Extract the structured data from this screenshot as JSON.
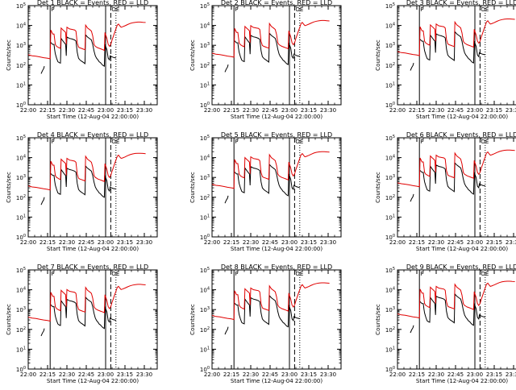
{
  "figure": {
    "colors": {
      "events": "#000000",
      "lld": "#e00000",
      "background": "#ffffff",
      "axes": "#000000"
    },
    "panels": [
      {
        "title": "Det 1  BLACK = Events, RED = LLD",
        "xlabel": "Start Time (12-Aug-04 22:00:00)",
        "ylabel": "Counts/sec",
        "marker_labels": [
          "P",
          "OE"
        ]
      },
      {
        "title": "Det 2  BLACK = Events, RED = LLD",
        "xlabel": "Start Time (12-Aug-04 22:00:00)",
        "ylabel": "Counts/sec",
        "marker_labels": [
          "P",
          "OE"
        ]
      },
      {
        "title": "Det 3  BLACK = Events, RED = LLD",
        "xlabel": "Start Time (12-Aug-04 22:00:00)",
        "ylabel": "Counts/sec",
        "marker_labels": [
          "P",
          "OE"
        ]
      },
      {
        "title": "Det 4  BLACK = Events, RED = LLD",
        "xlabel": "Start Time (12-Aug-04 22:00:00)",
        "ylabel": "Counts/sec",
        "marker_labels": [
          "P",
          "OE"
        ]
      },
      {
        "title": "Det 5  BLACK = Events, RED = LLD",
        "xlabel": "Start Time (12-Aug-04 22:00:00)",
        "ylabel": "Counts/sec",
        "marker_labels": [
          "P",
          "OE"
        ]
      },
      {
        "title": "Det 6  BLACK = Events, RED = LLD",
        "xlabel": "Start Time (12-Aug-04 22:00:00)",
        "ylabel": "Counts/sec",
        "marker_labels": [
          "P",
          "OE"
        ]
      },
      {
        "title": "Det 7  BLACK = Events, RED = LLD",
        "xlabel": "Start Time (12-Aug-04 22:00:00)",
        "ylabel": "Counts/sec",
        "marker_labels": [
          "P",
          "OE"
        ]
      },
      {
        "title": "Det 8  BLACK = Events, RED = LLD",
        "xlabel": "Start Time (12-Aug-04 22:00:00)",
        "ylabel": "Counts/sec",
        "marker_labels": [
          "P",
          "OE"
        ]
      },
      {
        "title": "Det 9  BLACK = Events, RED = LLD",
        "xlabel": "Start Time (12-Aug-04 22:00:00)",
        "ylabel": "Counts/sec",
        "marker_labels": [
          "P",
          "OE"
        ]
      }
    ]
  },
  "chart_data": {
    "type": "line",
    "layout": "3x3 grid",
    "x_tick_labels": [
      "22:00",
      "22:15",
      "22:30",
      "22:45",
      "23:00",
      "23:15",
      "23:30"
    ],
    "x_ticks_minutes": [
      0,
      15,
      30,
      45,
      60,
      75,
      90
    ],
    "xlim_minutes": [
      0,
      100
    ],
    "y_scale": "log",
    "ylim": [
      1,
      100000
    ],
    "y_ticks": [
      1,
      10,
      100,
      1000,
      10000,
      100000
    ],
    "y_tick_labels": [
      "10^0",
      "10^1",
      "10^2",
      "10^3",
      "10^4",
      "10^5"
    ],
    "vertical_lines": [
      {
        "x": 17,
        "style": "solid"
      },
      {
        "x": 60,
        "style": "solid"
      },
      {
        "x": 64,
        "style": "dashed"
      },
      {
        "x": 68,
        "style": "dotted"
      }
    ],
    "series": [
      {
        "name": "Events",
        "color": "#000000",
        "segments": [
          [
            [
              10,
              50
            ],
            [
              11,
              70
            ],
            [
              12,
              90
            ],
            [
              12.5,
              120
            ]
          ],
          [
            [
              17,
              2000
            ],
            [
              19,
              1500
            ],
            [
              20,
              1500
            ],
            [
              20.5,
              800
            ],
            [
              21,
              500
            ],
            [
              22,
              300
            ],
            [
              23,
              200
            ],
            [
              24,
              180
            ],
            [
              25,
              170
            ],
            [
              25.5,
              3000
            ],
            [
              27,
              2200
            ],
            [
              28,
              1800
            ],
            [
              29,
              1500
            ],
            [
              29.5,
              400
            ],
            [
              30,
              3500
            ],
            [
              32,
              3000
            ],
            [
              34,
              2800
            ],
            [
              36,
              2500
            ],
            [
              37,
              2200
            ],
            [
              38,
              600
            ],
            [
              39,
              300
            ],
            [
              40,
              250
            ],
            [
              41,
              220
            ],
            [
              42,
              200
            ],
            [
              43,
              180
            ],
            [
              44,
              160
            ],
            [
              44.5,
              4500
            ],
            [
              46,
              3500
            ],
            [
              48,
              2800
            ],
            [
              49,
              2500
            ],
            [
              50,
              1500
            ],
            [
              51,
              700
            ],
            [
              52,
              400
            ],
            [
              53,
              300
            ],
            [
              54,
              250
            ],
            [
              55,
              200
            ],
            [
              56,
              180
            ],
            [
              57,
              150
            ],
            [
              58,
              130
            ],
            [
              59,
              120
            ],
            [
              59.5,
              1500
            ],
            [
              61,
              800
            ],
            [
              62,
              300
            ],
            [
              63,
              250
            ],
            [
              63.5,
              400
            ],
            [
              64,
              380
            ],
            [
              65,
              350
            ],
            [
              66,
              330
            ],
            [
              67,
              320
            ],
            [
              68,
              310
            ]
          ]
        ]
      },
      {
        "name": "LLD",
        "color": "#e00000",
        "segments": [
          [
            [
              0,
              450
            ],
            [
              3,
              400
            ],
            [
              6,
              380
            ],
            [
              9,
              350
            ],
            [
              12,
              320
            ],
            [
              15,
              300
            ],
            [
              17,
              280
            ],
            [
              17.5,
              8000
            ],
            [
              19,
              5000
            ],
            [
              20,
              5000
            ],
            [
              21,
              1500
            ],
            [
              22,
              1200
            ],
            [
              23,
              1100
            ],
            [
              24,
              1000
            ],
            [
              25,
              950
            ],
            [
              25.5,
              10000
            ],
            [
              27,
              8000
            ],
            [
              28,
              7000
            ],
            [
              29,
              6000
            ],
            [
              29.5,
              1500
            ],
            [
              30,
              11000
            ],
            [
              32,
              9000
            ],
            [
              34,
              8500
            ],
            [
              36,
              8000
            ],
            [
              37,
              7000
            ],
            [
              38,
              1800
            ],
            [
              39,
              1100
            ],
            [
              40,
              1000
            ],
            [
              41,
              950
            ],
            [
              42,
              900
            ],
            [
              43,
              850
            ],
            [
              44,
              800
            ],
            [
              44.5,
              14000
            ],
            [
              46,
              10000
            ],
            [
              48,
              8000
            ],
            [
              49,
              7000
            ],
            [
              50,
              4000
            ],
            [
              51,
              1500
            ],
            [
              52,
              1200
            ],
            [
              53,
              1100
            ],
            [
              54,
              1000
            ],
            [
              55,
              950
            ],
            [
              56,
              900
            ],
            [
              57,
              850
            ],
            [
              58,
              800
            ],
            [
              59,
              750
            ],
            [
              59.5,
              6000
            ],
            [
              61,
              3000
            ],
            [
              62,
              1500
            ],
            [
              63,
              1200
            ],
            [
              64,
              1500
            ],
            [
              65,
              2500
            ],
            [
              66,
              3800
            ],
            [
              67,
              6000
            ],
            [
              68,
              9000
            ],
            [
              69,
              14000
            ],
            [
              70,
              16000
            ],
            [
              71,
              13000
            ],
            [
              72,
              11000
            ],
            [
              73,
              11500
            ],
            [
              75,
              13000
            ],
            [
              77,
              15000
            ],
            [
              79,
              17000
            ],
            [
              81,
              18500
            ],
            [
              83,
              19500
            ],
            [
              85,
              20000
            ],
            [
              87,
              20000
            ],
            [
              89,
              19500
            ],
            [
              91,
              19000
            ]
          ]
        ]
      }
    ]
  }
}
